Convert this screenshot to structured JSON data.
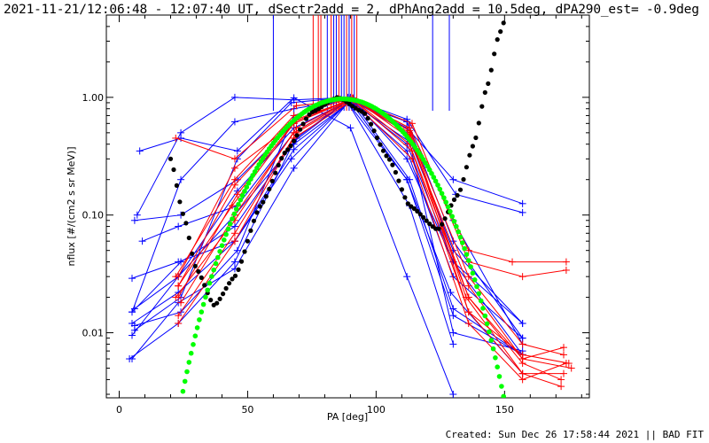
{
  "title": "2021-11-21/12:06:48 - 12:07:40 UT, dSectr2add = 2, dPhAng2add = 10.5deg, dPA290_est= -0.9deg",
  "footer": "Created: Sun Dec 26 17:58:44 2021 || BAD FIT",
  "colors": {
    "blue": "#0000ff",
    "red": "#ff0000",
    "green": "#00ff00",
    "black": "#000000"
  },
  "chart_data": {
    "type": "line",
    "xlabel": "PA [deg]",
    "ylabel": "nflux [#/(cm2 s sr MeV)]",
    "xlim": [
      -5,
      183
    ],
    "ylim": [
      0.0028,
      5.0
    ],
    "yscale": "log",
    "x_ticks": [
      {
        "value": 0,
        "label": "0"
      },
      {
        "value": 50,
        "label": "50"
      },
      {
        "value": 100,
        "label": "100"
      },
      {
        "value": 150,
        "label": "150"
      }
    ],
    "y_ticks": [
      {
        "value": 0.01,
        "label": "0.01"
      },
      {
        "value": 0.1,
        "label": "0.10"
      },
      {
        "value": 1.0,
        "label": "1.00"
      }
    ],
    "vertical_markers": [
      {
        "x": 60,
        "color": "blue"
      },
      {
        "x": 75.5,
        "color": "red"
      },
      {
        "x": 77.5,
        "color": "red"
      },
      {
        "x": 78.5,
        "color": "red"
      },
      {
        "x": 81,
        "color": "blue"
      },
      {
        "x": 82.5,
        "color": "red"
      },
      {
        "x": 83.5,
        "color": "blue"
      },
      {
        "x": 84.5,
        "color": "blue"
      },
      {
        "x": 85.5,
        "color": "red"
      },
      {
        "x": 86.5,
        "color": "blue"
      },
      {
        "x": 87.5,
        "color": "blue"
      },
      {
        "x": 88.5,
        "color": "red"
      },
      {
        "x": 89.5,
        "color": "blue"
      },
      {
        "x": 90.5,
        "color": "red"
      },
      {
        "x": 91.5,
        "color": "blue"
      },
      {
        "x": 92.5,
        "color": "red"
      },
      {
        "x": 122,
        "color": "blue"
      },
      {
        "x": 128.5,
        "color": "blue"
      }
    ],
    "series": [
      {
        "color": "blue",
        "points": [
          [
            5,
            0.029
          ],
          [
            23,
            0.04
          ],
          [
            45,
            0.06
          ],
          [
            68,
            0.36
          ],
          [
            90,
            0.93
          ],
          [
            112,
            0.62
          ],
          [
            130,
            0.06
          ],
          [
            157,
            0.009
          ]
        ]
      },
      {
        "color": "blue",
        "points": [
          [
            5,
            0.0095
          ],
          [
            23,
            0.03
          ],
          [
            46,
            0.16
          ],
          [
            68,
            0.55
          ],
          [
            90,
            0.95
          ],
          [
            112,
            0.4
          ],
          [
            130,
            0.04
          ],
          [
            157,
            0.0065
          ]
        ]
      },
      {
        "color": "blue",
        "points": [
          [
            5,
            0.015
          ],
          [
            24,
            0.2
          ],
          [
            45,
            0.62
          ],
          [
            68,
            0.8
          ],
          [
            90,
            0.97
          ],
          [
            112,
            0.55
          ],
          [
            130,
            0.2
          ],
          [
            157,
            0.125
          ]
        ]
      },
      {
        "color": "blue",
        "points": [
          [
            7,
            0.1
          ],
          [
            24,
            0.5
          ],
          [
            45,
            1.0
          ],
          [
            68,
            0.95
          ],
          [
            90,
            1.0
          ],
          [
            112,
            0.3
          ],
          [
            130,
            0.04
          ],
          [
            157,
            0.012
          ]
        ]
      },
      {
        "color": "blue",
        "points": [
          [
            6,
            0.0105
          ],
          [
            24,
            0.02
          ],
          [
            46,
            0.3
          ],
          [
            67,
            0.9
          ],
          [
            89,
            1.0
          ],
          [
            112,
            0.65
          ],
          [
            131,
            0.15
          ],
          [
            157,
            0.105
          ]
        ]
      },
      {
        "color": "blue",
        "points": [
          [
            4,
            0.006
          ],
          [
            23,
            0.012
          ],
          [
            45,
            0.04
          ],
          [
            68,
            0.42
          ],
          [
            90,
            0.98
          ],
          [
            113,
            0.2
          ],
          [
            130,
            0.016
          ],
          [
            157,
            0.0065
          ]
        ]
      },
      {
        "color": "blue",
        "points": [
          [
            5,
            0.012
          ],
          [
            23,
            0.022
          ],
          [
            45,
            0.06
          ],
          [
            67,
            0.3
          ],
          [
            89,
            0.9
          ],
          [
            112,
            0.2
          ],
          [
            129,
            0.022
          ],
          [
            157,
            0.0045
          ]
        ]
      },
      {
        "color": "blue",
        "points": [
          [
            5,
            0.015
          ],
          [
            24,
            0.04
          ],
          [
            45,
            0.08
          ],
          [
            69,
            0.45
          ],
          [
            89,
            0.95
          ],
          [
            113,
            0.42
          ],
          [
            130,
            0.01
          ],
          [
            157,
            0.007
          ]
        ]
      },
      {
        "color": "blue",
        "points": [
          [
            9,
            0.06
          ],
          [
            23,
            0.08
          ],
          [
            46,
            0.12
          ],
          [
            68,
            0.5
          ],
          [
            90,
            0.97
          ],
          [
            112,
            0.5
          ],
          [
            130,
            0.05
          ],
          [
            157,
            0.012
          ]
        ]
      },
      {
        "color": "blue",
        "points": [
          [
            6,
            0.09
          ],
          [
            24,
            0.1
          ],
          [
            46,
            0.2
          ],
          [
            68,
            0.6
          ],
          [
            90,
            0.96
          ],
          [
            112,
            0.62
          ],
          [
            130,
            0.09
          ],
          [
            157,
            0.008
          ]
        ]
      },
      {
        "color": "blue",
        "points": [
          [
            5,
            0.006
          ],
          [
            23,
            0.018
          ],
          [
            45,
            0.035
          ],
          [
            68,
            0.25
          ],
          [
            89,
            0.9
          ],
          [
            113,
            0.12
          ],
          [
            130,
            0.008
          ]
        ]
      },
      {
        "color": "blue",
        "points": [
          [
            8,
            0.35
          ],
          [
            24,
            0.45
          ],
          [
            46,
            0.35
          ],
          [
            68,
            0.99
          ],
          [
            90,
            0.55
          ],
          [
            112,
            0.03
          ],
          [
            130,
            0.003
          ]
        ]
      },
      {
        "color": "blue",
        "points": [
          [
            6,
            0.0115
          ],
          [
            24,
            0.015
          ],
          [
            46,
            0.05
          ],
          [
            68,
            0.7
          ],
          [
            89,
            0.99
          ],
          [
            112,
            0.2
          ],
          [
            130,
            0.014
          ],
          [
            157,
            0.0065
          ]
        ]
      },
      {
        "color": "blue",
        "points": [
          [
            6,
            0.016
          ],
          [
            23,
            0.03
          ],
          [
            45,
            0.1
          ],
          [
            68,
            0.4
          ],
          [
            90,
            0.92
          ],
          [
            112,
            0.35
          ],
          [
            130,
            0.03
          ],
          [
            157,
            0.009
          ]
        ]
      },
      {
        "color": "red",
        "points": [
          [
            22,
            0.45
          ],
          [
            45,
            0.3
          ],
          [
            69,
            0.85
          ],
          [
            91,
            0.95
          ],
          [
            114,
            0.6
          ],
          [
            136,
            0.04
          ],
          [
            157,
            0.03
          ],
          [
            174,
            0.034
          ]
        ]
      },
      {
        "color": "red",
        "points": [
          [
            23,
            0.03
          ],
          [
            45,
            0.25
          ],
          [
            68,
            0.6
          ],
          [
            91,
            0.98
          ],
          [
            113,
            0.55
          ],
          [
            136,
            0.05
          ],
          [
            153,
            0.04
          ],
          [
            174,
            0.04
          ]
        ]
      },
      {
        "color": "red",
        "points": [
          [
            23,
            0.025
          ],
          [
            44,
            0.12
          ],
          [
            68,
            0.6
          ],
          [
            91,
            0.97
          ],
          [
            113,
            0.5
          ],
          [
            136,
            0.03
          ],
          [
            157,
            0.008
          ],
          [
            173,
            0.0065
          ]
        ]
      },
      {
        "color": "red",
        "points": [
          [
            22,
            0.02
          ],
          [
            45,
            0.09
          ],
          [
            69,
            0.55
          ],
          [
            91,
            0.98
          ],
          [
            113,
            0.45
          ],
          [
            136,
            0.025
          ],
          [
            157,
            0.006
          ],
          [
            173,
            0.0075
          ]
        ]
      },
      {
        "color": "red",
        "points": [
          [
            23,
            0.014
          ],
          [
            45,
            0.07
          ],
          [
            69,
            0.5
          ],
          [
            91,
            0.96
          ],
          [
            113,
            0.4
          ],
          [
            136,
            0.02
          ],
          [
            157,
            0.0055
          ],
          [
            172,
            0.004
          ]
        ]
      },
      {
        "color": "red",
        "points": [
          [
            23,
            0.012
          ],
          [
            45,
            0.06
          ],
          [
            68,
            0.45
          ],
          [
            91,
            0.95
          ],
          [
            114,
            0.35
          ],
          [
            136,
            0.015
          ],
          [
            157,
            0.0045
          ],
          [
            172,
            0.0035
          ]
        ]
      },
      {
        "color": "red",
        "points": [
          [
            22,
            0.03
          ],
          [
            45,
            0.2
          ],
          [
            68,
            0.7
          ],
          [
            91,
            0.99
          ],
          [
            113,
            0.52
          ],
          [
            136,
            0.015
          ],
          [
            157,
            0.0065
          ],
          [
            175,
            0.0055
          ]
        ]
      },
      {
        "color": "red",
        "points": [
          [
            23,
            0.02
          ],
          [
            46,
            0.15
          ],
          [
            69,
            0.65
          ],
          [
            91,
            0.97
          ],
          [
            113,
            0.48
          ],
          [
            136,
            0.02
          ],
          [
            157,
            0.006
          ],
          [
            176,
            0.005
          ]
        ]
      },
      {
        "color": "red",
        "points": [
          [
            24,
            0.018
          ],
          [
            45,
            0.1
          ],
          [
            68,
            0.5
          ],
          [
            90,
            0.96
          ],
          [
            114,
            0.3
          ],
          [
            136,
            0.012
          ],
          [
            157,
            0.004
          ],
          [
            174,
            0.0055
          ]
        ]
      },
      {
        "color": "red",
        "points": [
          [
            23,
            0.025
          ],
          [
            45,
            0.18
          ],
          [
            68,
            0.62
          ],
          [
            91,
            0.98
          ],
          [
            113,
            0.55
          ],
          [
            135,
            0.02
          ],
          [
            157,
            0.0045
          ],
          [
            173,
            0.0045
          ]
        ]
      }
    ],
    "fits": [
      {
        "name": "black-fit",
        "color": "black",
        "type": "polynomial"
      },
      {
        "name": "green-fit",
        "color": "green",
        "type": "sine-power"
      }
    ]
  }
}
